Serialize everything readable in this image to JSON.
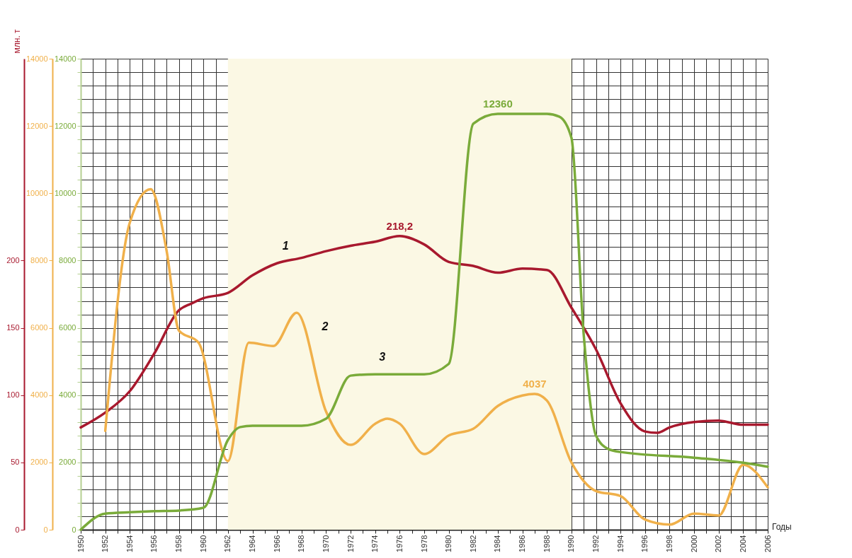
{
  "chart_data": {
    "type": "line",
    "xlabel": "Годы",
    "ylabel": "млн. т",
    "xlim": [
      1950,
      2006
    ],
    "xticks": [
      1950,
      {
        "value": 1951,
        "label": null
      },
      1952,
      {
        "value": 1953,
        "label": null
      },
      1954,
      {
        "value": 1955,
        "label": null
      },
      1956,
      {
        "value": 1957,
        "label": null
      },
      1958,
      {
        "value": 1959,
        "label": null
      },
      1960,
      {
        "value": 1961,
        "label": null
      },
      1962,
      {
        "value": 1963,
        "label": null
      },
      1964,
      {
        "value": 1965,
        "label": null
      },
      1966,
      {
        "value": 1967,
        "label": null
      },
      1968,
      {
        "value": 1969,
        "label": null
      },
      1970,
      {
        "value": 1971,
        "label": null
      },
      1972,
      {
        "value": 1973,
        "label": null
      },
      1974,
      {
        "value": 1975,
        "label": null
      },
      1976,
      {
        "value": 1977,
        "label": null
      },
      1978,
      {
        "value": 1979,
        "label": null
      },
      1980,
      {
        "value": 1981,
        "label": null
      },
      1982,
      {
        "value": 1983,
        "label": null
      },
      1984,
      {
        "value": 1985,
        "label": null
      },
      1986,
      {
        "value": 1987,
        "label": null
      },
      1988,
      {
        "value": 1989,
        "label": null
      },
      1990,
      {
        "value": 1991,
        "label": null
      },
      1992,
      {
        "value": 1993,
        "label": null
      },
      1994,
      {
        "value": 1995,
        "label": null
      },
      1996,
      {
        "value": 1997,
        "label": null
      },
      1998,
      {
        "value": 1999,
        "label": null
      },
      2000,
      {
        "value": 2001,
        "label": null
      },
      2002,
      {
        "value": 2003,
        "label": null
      },
      2004,
      {
        "value": 2005,
        "label": null
      },
      2006
    ],
    "ylim": [
      0,
      350
    ],
    "yticks": [
      0,
      50,
      100,
      150,
      200
    ],
    "y2lim": [
      0,
      14000
    ],
    "y2ticks": [
      0,
      2000,
      4000,
      6000,
      8000,
      10000,
      12000,
      14000
    ],
    "y3lim": [
      0,
      14000
    ],
    "y3ticks": [
      0,
      {
        "value": 400,
        "label": null
      },
      {
        "value": 800,
        "label": null
      },
      {
        "value": 1200,
        "label": null
      },
      {
        "value": 1600,
        "label": null
      },
      2000,
      {
        "value": 2400,
        "label": null
      },
      {
        "value": 2800,
        "label": null
      },
      {
        "value": 3200,
        "label": null
      },
      {
        "value": 3600,
        "label": null
      },
      4000,
      {
        "value": 4400,
        "label": null
      },
      {
        "value": 4800,
        "label": null
      },
      {
        "value": 5200,
        "label": null
      },
      {
        "value": 5600,
        "label": null
      },
      6000,
      {
        "value": 6400,
        "label": null
      },
      {
        "value": 6800,
        "label": null
      },
      {
        "value": 7200,
        "label": null
      },
      {
        "value": 7600,
        "label": null
      },
      8000,
      {
        "value": 8400,
        "label": null
      },
      {
        "value": 8800,
        "label": null
      },
      {
        "value": 9200,
        "label": null
      },
      {
        "value": 9600,
        "label": null
      },
      10000,
      {
        "value": 10400,
        "label": null
      },
      {
        "value": 10800,
        "label": null
      },
      {
        "value": 11200,
        "label": null
      },
      {
        "value": 11600,
        "label": null
      },
      12000,
      {
        "value": 12400,
        "label": null
      },
      {
        "value": 12800,
        "label": null
      },
      {
        "value": 13200,
        "label": null
      },
      {
        "value": 13600,
        "label": null
      },
      14000
    ],
    "grid": true,
    "legend": false,
    "marker": "none",
    "line_style": "solid",
    "bands": [
      {
        "axis": "x",
        "from": 1962,
        "to": 1990,
        "color": "#fbf8e4"
      }
    ],
    "series": [
      {
        "name": "1",
        "color": "#a8192e",
        "axis": "y",
        "x": [
          1950,
          1952,
          1954,
          1956,
          1958,
          1959,
          1960,
          1962,
          1964,
          1966,
          1968,
          1970,
          1972,
          1974,
          1976,
          1978,
          1980,
          1982,
          1984,
          1986,
          1988,
          1990,
          1992,
          1994,
          1996,
          1997,
          1998,
          2000,
          2002,
          2004,
          2006
        ],
        "values": [
          76,
          87,
          103,
          131,
          163,
          168,
          172,
          176,
          189,
          198,
          202,
          207,
          211,
          214,
          218.2,
          212,
          199,
          196,
          191,
          194,
          193,
          165,
          134,
          94,
          73,
          72,
          76,
          80,
          81,
          78,
          78
        ],
        "value_labels": [
          null,
          null,
          null,
          null,
          null,
          null,
          null,
          null,
          null,
          null,
          null,
          null,
          null,
          null,
          "218,2",
          null,
          null,
          null,
          null,
          null,
          null,
          null,
          null,
          null,
          null,
          null,
          null,
          null,
          null,
          null,
          null
        ]
      },
      {
        "name": "2",
        "color": "#f0b04a",
        "axis": "y2",
        "x": [
          1952,
          1954,
          1955.7,
          1957,
          1958,
          1959.6,
          1962,
          1963.7,
          1965.7,
          1967.6,
          1970,
          1972,
          1974,
          1975,
          1976,
          1978,
          1980,
          1982,
          1984,
          1986,
          1987,
          1988,
          1990,
          1992,
          1994,
          1996,
          1998,
          2000,
          2002,
          2004,
          2006
        ],
        "values": [
          2940,
          9130,
          10120,
          8290,
          5920,
          5560,
          2040,
          5560,
          5460,
          6450,
          3510,
          2520,
          3150,
          3300,
          3150,
          2250,
          2800,
          3000,
          3680,
          3990,
          4037,
          3840,
          2000,
          1150,
          1000,
          300,
          150,
          480,
          420,
          1930,
          1260
        ],
        "value_labels": [
          null,
          null,
          null,
          null,
          null,
          null,
          null,
          null,
          null,
          null,
          null,
          null,
          null,
          null,
          null,
          null,
          null,
          null,
          null,
          null,
          "4037",
          null,
          null,
          null,
          null,
          null,
          null,
          null,
          null,
          null,
          null
        ]
      },
      {
        "name": "3",
        "color": "#7aab3a",
        "axis": "y3",
        "x": [
          1950,
          1952,
          1954,
          1956,
          1958,
          1960,
          1962,
          1963,
          1964,
          1968,
          1970,
          1972,
          1974,
          1978,
          1980,
          1982,
          1984,
          1986,
          1988,
          1989,
          1990,
          1991,
          1992,
          1993,
          1994,
          2000,
          2004,
          2006
        ],
        "values": [
          0,
          480,
          520,
          550,
          570,
          650,
          2670,
          3050,
          3090,
          3090,
          3300,
          4580,
          4620,
          4620,
          4930,
          12070,
          12360,
          12360,
          12360,
          12280,
          11650,
          5800,
          2800,
          2400,
          2310,
          2140,
          1990,
          1870
        ],
        "value_labels": [
          null,
          null,
          null,
          null,
          null,
          null,
          null,
          null,
          null,
          null,
          null,
          null,
          null,
          null,
          null,
          null,
          "12360",
          null,
          null,
          null,
          null,
          null,
          null,
          null,
          null,
          null,
          null,
          null
        ]
      }
    ]
  }
}
